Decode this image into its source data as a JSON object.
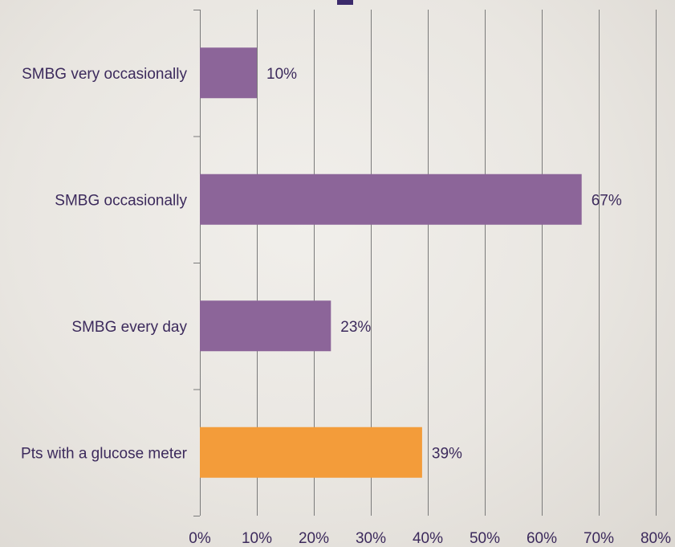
{
  "chart_data": {
    "type": "bar",
    "orientation": "horizontal",
    "title": "",
    "xlabel": "",
    "ylabel": "",
    "categories": [
      "SMBG very occasionally",
      "SMBG occasionally",
      "SMBG every day",
      "Pts with a glucose meter"
    ],
    "values": [
      10,
      67,
      23,
      39
    ],
    "data_labels": [
      "10%",
      "67%",
      "23%",
      "39%"
    ],
    "bar_colors": [
      "#8c6599",
      "#8c6599",
      "#8c6599",
      "#f39c3a"
    ],
    "xlim": [
      0,
      80
    ],
    "xticks": [
      0,
      10,
      20,
      30,
      40,
      50,
      60,
      70,
      80
    ],
    "xtick_labels": [
      "0%",
      "10%",
      "20%",
      "30%",
      "40%",
      "50%",
      "60%",
      "70%",
      "80%"
    ],
    "grid": true,
    "legend": "none"
  },
  "colors": {
    "text": "#3c2a5c",
    "grid": "#7a7a7a"
  }
}
